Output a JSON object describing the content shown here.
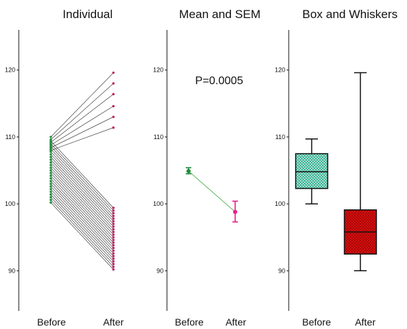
{
  "chart_data": [
    {
      "type": "scatter",
      "title": "Individual",
      "categories": [
        "Before",
        "After"
      ],
      "ylim": [
        84,
        126
      ],
      "yticks": [
        90,
        100,
        110,
        120
      ],
      "pairs": [
        [
          110.0,
          119.6
        ],
        [
          109.6,
          118.0
        ],
        [
          109.2,
          116.4
        ],
        [
          108.8,
          114.6
        ],
        [
          108.4,
          113.0
        ],
        [
          108.0,
          111.4
        ],
        [
          109.4,
          99.4
        ],
        [
          109.0,
          99.0
        ],
        [
          108.6,
          98.6
        ],
        [
          108.2,
          98.2
        ],
        [
          107.8,
          97.8
        ],
        [
          107.4,
          97.4
        ],
        [
          107.0,
          97.0
        ],
        [
          106.6,
          96.6
        ],
        [
          106.2,
          96.2
        ],
        [
          105.8,
          95.8
        ],
        [
          105.4,
          95.4
        ],
        [
          105.0,
          95.0
        ],
        [
          104.6,
          94.6
        ],
        [
          104.2,
          94.2
        ],
        [
          103.8,
          93.8
        ],
        [
          103.4,
          93.4
        ],
        [
          103.0,
          93.0
        ],
        [
          102.6,
          92.6
        ],
        [
          102.2,
          92.2
        ],
        [
          101.8,
          91.8
        ],
        [
          101.4,
          91.4
        ],
        [
          101.0,
          91.0
        ],
        [
          100.6,
          90.6
        ],
        [
          100.2,
          90.2
        ]
      ],
      "colors": {
        "before": "#1e8b3a",
        "after": "#c2185b",
        "line": "#222222"
      }
    },
    {
      "type": "scatter",
      "title": "Mean and SEM",
      "categories": [
        "Before",
        "After"
      ],
      "ylim": [
        84,
        126
      ],
      "yticks": [
        90,
        100,
        110,
        120
      ],
      "points": [
        {
          "mean": 104.9,
          "low": 104.5,
          "high": 105.4
        },
        {
          "mean": 98.8,
          "low": 97.3,
          "high": 100.4
        }
      ],
      "annotation": "P=0.0005",
      "colors": {
        "before": "#1e8b3a",
        "after": "#e91e8c",
        "line": "#5cb85c"
      }
    },
    {
      "type": "box",
      "title": "Box and Whiskers",
      "categories": [
        "Before",
        "After"
      ],
      "ylim": [
        84,
        126
      ],
      "yticks": [
        90,
        100,
        110,
        120
      ],
      "boxes": [
        {
          "min": 100.0,
          "q1": 102.3,
          "median": 104.8,
          "q3": 107.5,
          "max": 109.7
        },
        {
          "min": 90.0,
          "q1": 92.5,
          "median": 95.8,
          "q3": 99.1,
          "max": 119.6
        }
      ],
      "colors": {
        "before": "#22aa88",
        "after": "#dd1111"
      }
    }
  ]
}
